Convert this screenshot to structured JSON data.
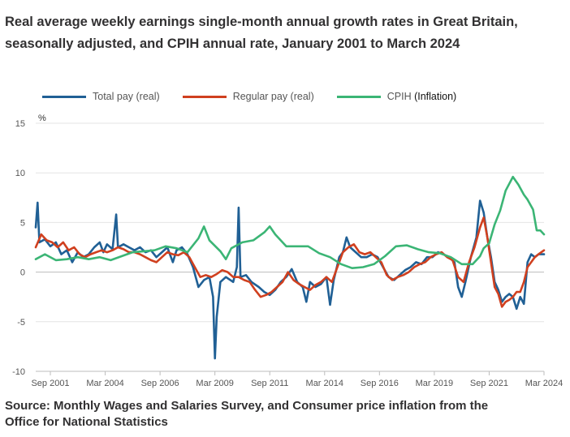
{
  "title": "Real average weekly earnings single-month annual growth rates in Great Britain, seasonally adjusted, and CPIH annual rate, January 2001 to March 2024",
  "source": "Source: Monthly Wages and Salaries Survey, and Consumer price inflation from the Office for National Statistics",
  "legend": [
    {
      "label": "Total pay (real)",
      "color": "#206095"
    },
    {
      "label": "Regular pay (real)",
      "color": "#d0401f"
    },
    {
      "label_main": "CPIH",
      "label_extra": "(Inflation)",
      "color": "#3bb575"
    }
  ],
  "chart_data": {
    "type": "line",
    "title": "Real average weekly earnings single-month annual growth rates in Great Britain, seasonally adjusted, and CPIH annual rate, January 2001 to March 2024",
    "ylabel": "%",
    "ylim": [
      -10,
      15
    ],
    "yticks": [
      15,
      10,
      5,
      0,
      -5,
      -10
    ],
    "xlim": [
      "2001-01",
      "2024-03"
    ],
    "xticks": [
      "Sep 2001",
      "Mar 2004",
      "Sep 2006",
      "Mar 2009",
      "Sep 2011",
      "Mar 2014",
      "Sep 2016",
      "Mar 2019",
      "Sep 2021",
      "Mar 2024"
    ],
    "grid": true,
    "legend_position": "top",
    "series": [
      {
        "name": "Total pay (real)",
        "color": "#206095",
        "points": [
          [
            "2001-01",
            4.5
          ],
          [
            "2001-02",
            7.0
          ],
          [
            "2001-03",
            3.0
          ],
          [
            "2001-06",
            3.3
          ],
          [
            "2001-09",
            2.6
          ],
          [
            "2001-12",
            3.0
          ],
          [
            "2002-03",
            1.8
          ],
          [
            "2002-06",
            2.2
          ],
          [
            "2002-09",
            1.0
          ],
          [
            "2002-12",
            2.0
          ],
          [
            "2003-03",
            1.5
          ],
          [
            "2003-06",
            1.8
          ],
          [
            "2003-09",
            2.5
          ],
          [
            "2003-12",
            3.0
          ],
          [
            "2004-02",
            2.0
          ],
          [
            "2004-04",
            2.8
          ],
          [
            "2004-07",
            2.3
          ],
          [
            "2004-09",
            5.8
          ],
          [
            "2004-10",
            2.5
          ],
          [
            "2005-01",
            2.8
          ],
          [
            "2005-04",
            2.5
          ],
          [
            "2005-07",
            2.2
          ],
          [
            "2005-10",
            2.5
          ],
          [
            "2006-01",
            2.0
          ],
          [
            "2006-04",
            2.2
          ],
          [
            "2006-07",
            1.5
          ],
          [
            "2006-10",
            2.0
          ],
          [
            "2007-01",
            2.5
          ],
          [
            "2007-04",
            1.0
          ],
          [
            "2007-06",
            2.2
          ],
          [
            "2007-09",
            2.5
          ],
          [
            "2007-12",
            1.8
          ],
          [
            "2008-03",
            0.5
          ],
          [
            "2008-06",
            -1.5
          ],
          [
            "2008-09",
            -0.8
          ],
          [
            "2008-12",
            -0.5
          ],
          [
            "2009-02",
            -2.5
          ],
          [
            "2009-03",
            -8.7
          ],
          [
            "2009-04",
            -4.5
          ],
          [
            "2009-06",
            -1.0
          ],
          [
            "2009-09",
            -0.5
          ],
          [
            "2010-01",
            -1.0
          ],
          [
            "2010-03",
            0.5
          ],
          [
            "2010-04",
            6.5
          ],
          [
            "2010-05",
            -0.5
          ],
          [
            "2010-08",
            -0.3
          ],
          [
            "2010-11",
            -1.0
          ],
          [
            "2011-03",
            -1.5
          ],
          [
            "2011-06",
            -2.0
          ],
          [
            "2011-09",
            -2.3
          ],
          [
            "2011-12",
            -1.8
          ],
          [
            "2012-03",
            -1.0
          ],
          [
            "2012-06",
            -0.5
          ],
          [
            "2012-09",
            0.3
          ],
          [
            "2012-12",
            -1.0
          ],
          [
            "2013-03",
            -1.5
          ],
          [
            "2013-05",
            -3.0
          ],
          [
            "2013-07",
            -1.0
          ],
          [
            "2013-10",
            -1.5
          ],
          [
            "2014-01",
            -1.2
          ],
          [
            "2014-04",
            -0.5
          ],
          [
            "2014-06",
            -3.3
          ],
          [
            "2014-08",
            -0.8
          ],
          [
            "2014-11",
            1.5
          ],
          [
            "2015-01",
            2.0
          ],
          [
            "2015-03",
            3.5
          ],
          [
            "2015-05",
            2.5
          ],
          [
            "2015-08",
            2.0
          ],
          [
            "2015-11",
            1.5
          ],
          [
            "2016-02",
            1.5
          ],
          [
            "2016-05",
            1.8
          ],
          [
            "2016-08",
            1.5
          ],
          [
            "2016-11",
            0.5
          ],
          [
            "2017-02",
            -0.5
          ],
          [
            "2017-05",
            -0.8
          ],
          [
            "2017-08",
            -0.3
          ],
          [
            "2017-11",
            0.2
          ],
          [
            "2018-02",
            0.5
          ],
          [
            "2018-05",
            1.0
          ],
          [
            "2018-08",
            0.8
          ],
          [
            "2018-11",
            1.5
          ],
          [
            "2019-02",
            1.5
          ],
          [
            "2019-05",
            2.0
          ],
          [
            "2019-08",
            1.8
          ],
          [
            "2019-11",
            1.5
          ],
          [
            "2020-02",
            1.0
          ],
          [
            "2020-04",
            -1.5
          ],
          [
            "2020-06",
            -2.5
          ],
          [
            "2020-08",
            -1.0
          ],
          [
            "2020-11",
            1.5
          ],
          [
            "2021-02",
            3.5
          ],
          [
            "2021-04",
            7.2
          ],
          [
            "2021-06",
            6.0
          ],
          [
            "2021-08",
            3.5
          ],
          [
            "2021-10",
            1.5
          ],
          [
            "2021-12",
            -1.0
          ],
          [
            "2022-02",
            -1.8
          ],
          [
            "2022-04",
            -3.0
          ],
          [
            "2022-06",
            -2.5
          ],
          [
            "2022-08",
            -2.2
          ],
          [
            "2022-10",
            -2.5
          ],
          [
            "2022-12",
            -3.7
          ],
          [
            "2023-02",
            -2.5
          ],
          [
            "2023-04",
            -3.2
          ],
          [
            "2023-06",
            1.0
          ],
          [
            "2023-08",
            1.8
          ],
          [
            "2023-10",
            1.5
          ],
          [
            "2023-12",
            1.8
          ],
          [
            "2024-03",
            1.8
          ]
        ]
      },
      {
        "name": "Regular pay (real)",
        "color": "#d0401f",
        "points": [
          [
            "2001-01",
            2.5
          ],
          [
            "2001-04",
            3.8
          ],
          [
            "2001-07",
            3.2
          ],
          [
            "2001-10",
            3.0
          ],
          [
            "2002-01",
            2.5
          ],
          [
            "2002-04",
            3.0
          ],
          [
            "2002-07",
            2.2
          ],
          [
            "2002-10",
            2.5
          ],
          [
            "2003-01",
            1.8
          ],
          [
            "2003-04",
            1.5
          ],
          [
            "2003-07",
            1.8
          ],
          [
            "2003-10",
            2.0
          ],
          [
            "2004-01",
            2.2
          ],
          [
            "2004-04",
            2.0
          ],
          [
            "2004-07",
            2.2
          ],
          [
            "2004-10",
            2.5
          ],
          [
            "2005-01",
            2.3
          ],
          [
            "2005-04",
            2.0
          ],
          [
            "2005-07",
            2.0
          ],
          [
            "2005-10",
            1.8
          ],
          [
            "2006-01",
            1.5
          ],
          [
            "2006-04",
            1.2
          ],
          [
            "2006-07",
            1.0
          ],
          [
            "2006-10",
            1.5
          ],
          [
            "2007-01",
            2.0
          ],
          [
            "2007-04",
            1.8
          ],
          [
            "2007-07",
            1.7
          ],
          [
            "2007-10",
            2.0
          ],
          [
            "2008-01",
            1.5
          ],
          [
            "2008-04",
            0.5
          ],
          [
            "2008-07",
            -0.5
          ],
          [
            "2008-10",
            -0.3
          ],
          [
            "2009-01",
            -0.5
          ],
          [
            "2009-04",
            -0.2
          ],
          [
            "2009-07",
            0.2
          ],
          [
            "2009-10",
            0.0
          ],
          [
            "2010-01",
            -0.5
          ],
          [
            "2010-04",
            -0.5
          ],
          [
            "2010-07",
            -0.8
          ],
          [
            "2010-10",
            -1.0
          ],
          [
            "2011-01",
            -1.8
          ],
          [
            "2011-04",
            -2.5
          ],
          [
            "2011-07",
            -2.3
          ],
          [
            "2011-10",
            -2.0
          ],
          [
            "2012-01",
            -1.5
          ],
          [
            "2012-04",
            -1.0
          ],
          [
            "2012-07",
            0.0
          ],
          [
            "2012-10",
            -0.8
          ],
          [
            "2013-01",
            -1.2
          ],
          [
            "2013-04",
            -1.5
          ],
          [
            "2013-07",
            -1.8
          ],
          [
            "2013-10",
            -1.3
          ],
          [
            "2014-01",
            -1.0
          ],
          [
            "2014-04",
            -0.5
          ],
          [
            "2014-07",
            -1.0
          ],
          [
            "2014-10",
            0.5
          ],
          [
            "2015-01",
            2.0
          ],
          [
            "2015-04",
            2.5
          ],
          [
            "2015-07",
            2.8
          ],
          [
            "2015-10",
            2.0
          ],
          [
            "2016-01",
            1.8
          ],
          [
            "2016-04",
            2.0
          ],
          [
            "2016-07",
            1.5
          ],
          [
            "2016-10",
            1.0
          ],
          [
            "2017-01",
            -0.3
          ],
          [
            "2017-04",
            -0.8
          ],
          [
            "2017-07",
            -0.5
          ],
          [
            "2017-10",
            -0.3
          ],
          [
            "2018-01",
            0.0
          ],
          [
            "2018-04",
            0.5
          ],
          [
            "2018-07",
            0.8
          ],
          [
            "2018-10",
            1.0
          ],
          [
            "2019-01",
            1.5
          ],
          [
            "2019-04",
            1.8
          ],
          [
            "2019-07",
            2.0
          ],
          [
            "2019-10",
            1.5
          ],
          [
            "2020-01",
            1.2
          ],
          [
            "2020-04",
            -0.5
          ],
          [
            "2020-07",
            -1.0
          ],
          [
            "2020-10",
            1.0
          ],
          [
            "2021-01",
            2.5
          ],
          [
            "2021-04",
            4.5
          ],
          [
            "2021-06",
            5.5
          ],
          [
            "2021-08",
            3.5
          ],
          [
            "2021-10",
            1.0
          ],
          [
            "2021-12",
            -1.5
          ],
          [
            "2022-02",
            -2.2
          ],
          [
            "2022-04",
            -3.5
          ],
          [
            "2022-06",
            -3.0
          ],
          [
            "2022-08",
            -2.8
          ],
          [
            "2022-10",
            -2.5
          ],
          [
            "2022-12",
            -2.0
          ],
          [
            "2023-02",
            -2.0
          ],
          [
            "2023-04",
            -1.0
          ],
          [
            "2023-06",
            0.5
          ],
          [
            "2023-08",
            1.0
          ],
          [
            "2023-10",
            1.5
          ],
          [
            "2023-12",
            1.8
          ],
          [
            "2024-03",
            2.2
          ]
        ]
      },
      {
        "name": "CPIH (Inflation)",
        "color": "#3bb575",
        "points": [
          [
            "2001-01",
            1.3
          ],
          [
            "2001-06",
            1.8
          ],
          [
            "2001-12",
            1.2
          ],
          [
            "2002-06",
            1.3
          ],
          [
            "2002-12",
            1.5
          ],
          [
            "2003-06",
            1.3
          ],
          [
            "2003-12",
            1.5
          ],
          [
            "2004-06",
            1.2
          ],
          [
            "2004-12",
            1.6
          ],
          [
            "2005-06",
            2.0
          ],
          [
            "2005-12",
            2.1
          ],
          [
            "2006-06",
            2.2
          ],
          [
            "2006-12",
            2.6
          ],
          [
            "2007-06",
            2.4
          ],
          [
            "2007-12",
            2.0
          ],
          [
            "2008-06",
            3.4
          ],
          [
            "2008-09",
            4.6
          ],
          [
            "2008-12",
            3.2
          ],
          [
            "2009-06",
            2.1
          ],
          [
            "2009-09",
            1.3
          ],
          [
            "2009-12",
            2.4
          ],
          [
            "2010-06",
            3.0
          ],
          [
            "2010-12",
            3.2
          ],
          [
            "2011-06",
            4.0
          ],
          [
            "2011-09",
            4.6
          ],
          [
            "2011-12",
            3.8
          ],
          [
            "2012-06",
            2.6
          ],
          [
            "2012-12",
            2.6
          ],
          [
            "2013-06",
            2.6
          ],
          [
            "2013-12",
            1.9
          ],
          [
            "2014-06",
            1.5
          ],
          [
            "2014-12",
            0.8
          ],
          [
            "2015-06",
            0.4
          ],
          [
            "2015-12",
            0.5
          ],
          [
            "2016-06",
            0.8
          ],
          [
            "2016-12",
            1.6
          ],
          [
            "2017-06",
            2.6
          ],
          [
            "2017-12",
            2.7
          ],
          [
            "2018-06",
            2.3
          ],
          [
            "2018-12",
            2.0
          ],
          [
            "2019-06",
            1.9
          ],
          [
            "2019-12",
            1.5
          ],
          [
            "2020-06",
            0.8
          ],
          [
            "2020-12",
            0.8
          ],
          [
            "2021-04",
            1.6
          ],
          [
            "2021-06",
            2.4
          ],
          [
            "2021-09",
            2.9
          ],
          [
            "2021-12",
            4.8
          ],
          [
            "2022-03",
            6.2
          ],
          [
            "2022-06",
            8.2
          ],
          [
            "2022-10",
            9.6
          ],
          [
            "2023-01",
            8.8
          ],
          [
            "2023-04",
            7.8
          ],
          [
            "2023-06",
            7.3
          ],
          [
            "2023-09",
            6.3
          ],
          [
            "2023-11",
            4.2
          ],
          [
            "2024-01",
            4.2
          ],
          [
            "2024-03",
            3.8
          ]
        ]
      }
    ]
  }
}
